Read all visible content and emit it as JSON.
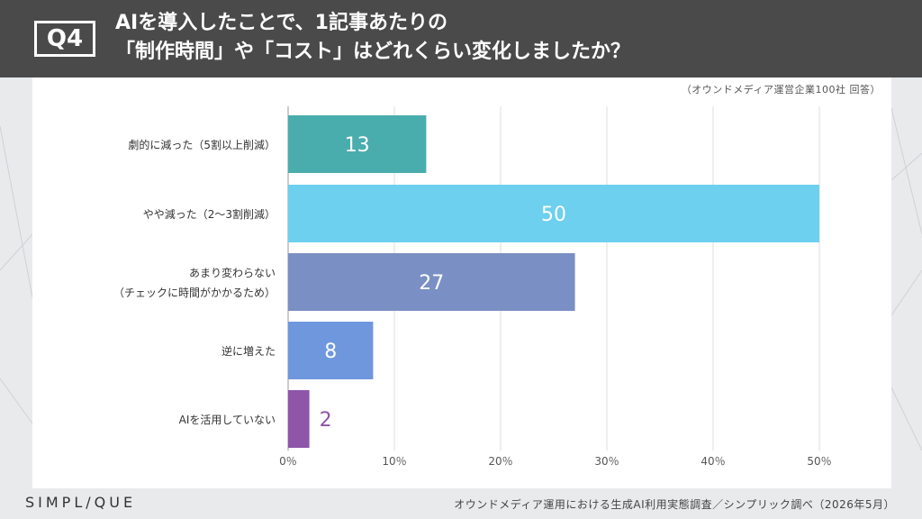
{
  "header": {
    "badge": "Q4",
    "title_line1": "AIを導入したことで、1記事あたりの",
    "title_line2": "「制作時間」や「コスト」はどれくらい変化しましたか？"
  },
  "source_note": "（オウンドメディア運営企業100社 回答）",
  "footer": {
    "logo": "SIMPL/QUE",
    "credit": "オウンドメディア運用における生成AI利用実態調査／シンプリック調べ（2026年5月）"
  },
  "colors": {
    "header_bg": "#4a4a4a",
    "bars": [
      "#4aadad",
      "#6dd0ee",
      "#7a8fc4",
      "#6f97dd",
      "#8e55a8"
    ],
    "label_outside": "#8e55a8"
  },
  "chart_data": {
    "type": "bar",
    "orientation": "horizontal",
    "categories": [
      [
        "劇的に減った（5割以上削減）"
      ],
      [
        "やや減った（2〜3割削減）"
      ],
      [
        "あまり変わらない",
        "（チェックに時間がかかるため）"
      ],
      [
        "逆に増えた"
      ],
      [
        "AIを活用していない"
      ]
    ],
    "values": [
      13,
      50,
      27,
      8,
      2
    ],
    "data_labels": [
      "13",
      "50",
      "27",
      "8",
      "2"
    ],
    "xlim": [
      0,
      50
    ],
    "xticks": [
      "0％",
      "10％",
      "20％",
      "30％",
      "40％",
      "50％"
    ],
    "grid": "vertical",
    "unit": "％"
  }
}
